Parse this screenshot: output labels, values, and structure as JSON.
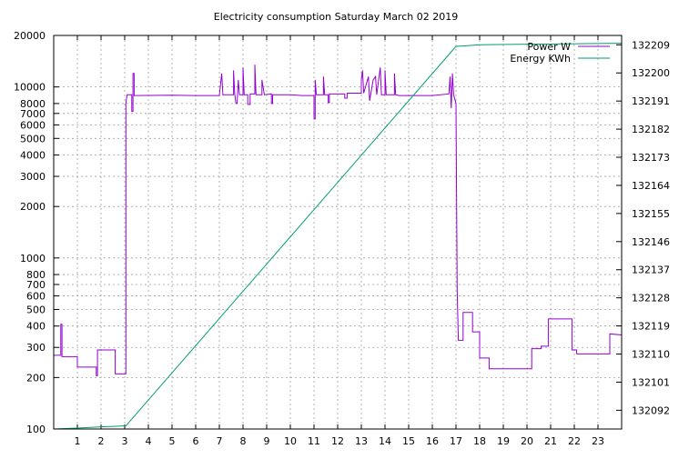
{
  "chart_data": {
    "type": "line",
    "title": "Electricity consumption Saturday March 02 2019",
    "x_axis": {
      "range": [
        0,
        24
      ],
      "ticks": [
        1,
        2,
        3,
        4,
        5,
        6,
        7,
        8,
        9,
        10,
        11,
        12,
        13,
        14,
        15,
        16,
        17,
        18,
        19,
        20,
        21,
        22,
        23
      ],
      "grid": true
    },
    "y_axis_left": {
      "scale": "log",
      "range": [
        100,
        20000
      ],
      "ticks": [
        100,
        200,
        300,
        400,
        500,
        600,
        700,
        800,
        1000,
        2000,
        3000,
        4000,
        5000,
        6000,
        7000,
        8000,
        10000,
        20000
      ],
      "grid": true
    },
    "y_axis_right": {
      "scale": "linear",
      "range": [
        132086,
        132212
      ],
      "ticks": [
        132092,
        132101,
        132110,
        132119,
        132128,
        132137,
        132146,
        132155,
        132164,
        132173,
        132182,
        132191,
        132200,
        132209
      ]
    },
    "legend_position": "top-right",
    "series": [
      {
        "name": "Power W",
        "axis": "left",
        "color": "#9400d3",
        "points": [
          [
            0,
            270
          ],
          [
            0.3,
            270
          ],
          [
            0.3,
            410
          ],
          [
            0.35,
            410
          ],
          [
            0.35,
            265
          ],
          [
            1,
            265
          ],
          [
            1,
            230
          ],
          [
            1.8,
            230
          ],
          [
            1.8,
            205
          ],
          [
            1.85,
            205
          ],
          [
            1.85,
            290
          ],
          [
            2.6,
            290
          ],
          [
            2.6,
            210
          ],
          [
            3.05,
            210
          ],
          [
            3.05,
            8000
          ],
          [
            3.1,
            9000
          ],
          [
            3.3,
            9000
          ],
          [
            3.3,
            7200
          ],
          [
            3.35,
            7200
          ],
          [
            3.35,
            12000
          ],
          [
            3.4,
            12000
          ],
          [
            3.4,
            8900
          ],
          [
            5,
            8950
          ],
          [
            6,
            8900
          ],
          [
            7,
            8900
          ],
          [
            7.1,
            12000
          ],
          [
            7.15,
            9000
          ],
          [
            7.6,
            9000
          ],
          [
            7.6,
            12500
          ],
          [
            7.65,
            9100
          ],
          [
            7.7,
            8000
          ],
          [
            7.75,
            8000
          ],
          [
            7.8,
            11000
          ],
          [
            7.85,
            9000
          ],
          [
            8,
            9000
          ],
          [
            8,
            13000
          ],
          [
            8.05,
            9000
          ],
          [
            8.2,
            9000
          ],
          [
            8.2,
            7900
          ],
          [
            8.3,
            7900
          ],
          [
            8.3,
            9100
          ],
          [
            8.5,
            9100
          ],
          [
            8.5,
            13500
          ],
          [
            8.55,
            9000
          ],
          [
            8.8,
            9000
          ],
          [
            8.8,
            11000
          ],
          [
            8.9,
            9000
          ],
          [
            9.2,
            9100
          ],
          [
            9.2,
            8000
          ],
          [
            9.25,
            8000
          ],
          [
            9.25,
            9000
          ],
          [
            10,
            9000
          ],
          [
            10.5,
            8900
          ],
          [
            11,
            8900
          ],
          [
            11,
            6500
          ],
          [
            11.05,
            6500
          ],
          [
            11.05,
            11000
          ],
          [
            11.1,
            9000
          ],
          [
            11.4,
            9000
          ],
          [
            11.4,
            11500
          ],
          [
            11.45,
            9000
          ],
          [
            11.6,
            9000
          ],
          [
            11.6,
            8100
          ],
          [
            11.65,
            8100
          ],
          [
            11.65,
            9100
          ],
          [
            12.3,
            9100
          ],
          [
            12.3,
            8600
          ],
          [
            12.4,
            8600
          ],
          [
            12.4,
            9200
          ],
          [
            13,
            9200
          ],
          [
            13,
            11000
          ],
          [
            13.05,
            12500
          ],
          [
            13.1,
            9200
          ],
          [
            13.3,
            11500
          ],
          [
            13.35,
            8300
          ],
          [
            13.5,
            11000
          ],
          [
            13.6,
            11500
          ],
          [
            13.65,
            9000
          ],
          [
            13.8,
            13000
          ],
          [
            13.85,
            9000
          ],
          [
            14,
            9000
          ],
          [
            14,
            12500
          ],
          [
            14.05,
            9000
          ],
          [
            14.4,
            9000
          ],
          [
            14.4,
            12000
          ],
          [
            14.45,
            9000
          ],
          [
            14.6,
            8900
          ],
          [
            16,
            8900
          ],
          [
            16.7,
            9100
          ],
          [
            16.75,
            11500
          ],
          [
            16.8,
            7500
          ],
          [
            16.85,
            12000
          ],
          [
            16.9,
            9000
          ],
          [
            17.0,
            8000
          ],
          [
            17.05,
            650
          ],
          [
            17.1,
            330
          ],
          [
            17.3,
            330
          ],
          [
            17.3,
            480
          ],
          [
            17.7,
            480
          ],
          [
            17.7,
            370
          ],
          [
            18,
            370
          ],
          [
            18,
            260
          ],
          [
            18.4,
            260
          ],
          [
            18.4,
            225
          ],
          [
            20.2,
            225
          ],
          [
            20.2,
            295
          ],
          [
            20.6,
            295
          ],
          [
            20.6,
            305
          ],
          [
            20.9,
            305
          ],
          [
            20.9,
            440
          ],
          [
            21.9,
            440
          ],
          [
            21.9,
            290
          ],
          [
            22.1,
            290
          ],
          [
            22.1,
            275
          ],
          [
            23.5,
            275
          ],
          [
            23.5,
            360
          ],
          [
            24,
            355
          ]
        ]
      },
      {
        "name": "Energy KWh",
        "axis": "right",
        "color": "#009e73",
        "points": [
          [
            0,
            132086
          ],
          [
            1,
            132086.3
          ],
          [
            2,
            132086.7
          ],
          [
            3.05,
            132087
          ],
          [
            17.0,
            132208.5
          ],
          [
            18,
            132209
          ],
          [
            20,
            132209.2
          ],
          [
            23,
            132209.4
          ],
          [
            24,
            132209.5
          ]
        ]
      }
    ]
  }
}
